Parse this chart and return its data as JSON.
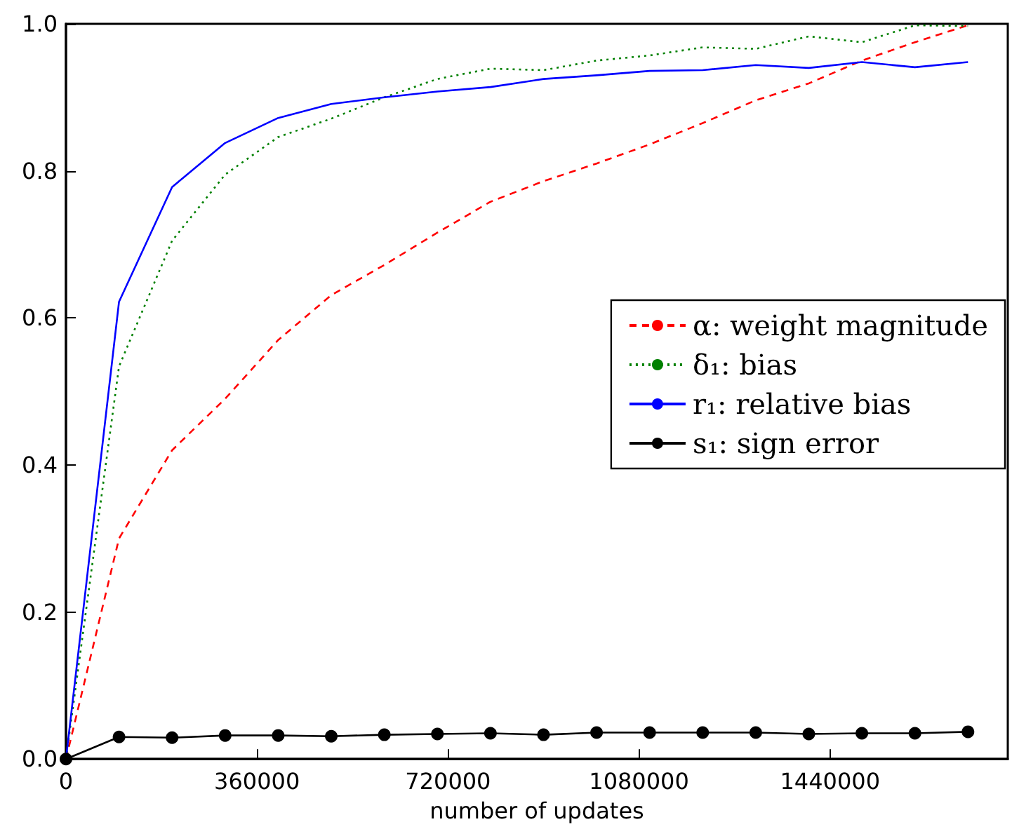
{
  "chart_data": {
    "type": "line",
    "xlabel": "number of updates",
    "x": [
      0,
      100000,
      200000,
      300000,
      400000,
      500000,
      600000,
      700000,
      800000,
      900000,
      1000000,
      1100000,
      1200000,
      1300000,
      1400000,
      1500000,
      1600000,
      1700000
    ],
    "series": [
      {
        "name": "α: weight magnitude",
        "color": "#ff0000",
        "line_style": "dashed",
        "marker": "none",
        "values": [
          0,
          0.3,
          0.42,
          0.49,
          0.57,
          0.631,
          0.672,
          0.716,
          0.758,
          0.786,
          0.81,
          0.836,
          0.865,
          0.896,
          0.919,
          0.95,
          0.975,
          0.998
        ]
      },
      {
        "name": "δ₁: bias",
        "color": "#008000",
        "line_style": "dotted",
        "marker": "none",
        "values": [
          0,
          0.534,
          0.705,
          0.795,
          0.846,
          0.871,
          0.9,
          0.925,
          0.939,
          0.937,
          0.95,
          0.957,
          0.968,
          0.966,
          0.983,
          0.975,
          0.998,
          0.997
        ]
      },
      {
        "name": "r₁: relative bias",
        "color": "#0000ff",
        "line_style": "solid",
        "marker": "none",
        "values": [
          0,
          0.622,
          0.778,
          0.838,
          0.872,
          0.891,
          0.9,
          0.908,
          0.914,
          0.925,
          0.93,
          0.936,
          0.937,
          0.944,
          0.94,
          0.948,
          0.941,
          0.948
        ]
      },
      {
        "name": "s₁: sign error",
        "color": "#000000",
        "line_style": "solid",
        "marker": "circle",
        "values": [
          0,
          0.03,
          0.029,
          0.032,
          0.032,
          0.031,
          0.033,
          0.034,
          0.035,
          0.033,
          0.036,
          0.036,
          0.036,
          0.036,
          0.034,
          0.035,
          0.035,
          0.037
        ]
      }
    ],
    "xlim": [
      0,
      1775000
    ],
    "xticks": [
      0,
      360000,
      720000,
      1080000,
      1440000
    ],
    "ylim": [
      0,
      1
    ],
    "yticks": [
      {
        "value": 0,
        "label": "0.0"
      },
      0.2,
      0.4,
      0.6,
      0.8,
      {
        "value": 1,
        "label": "1.0"
      }
    ],
    "grid": false,
    "legend": "right"
  }
}
